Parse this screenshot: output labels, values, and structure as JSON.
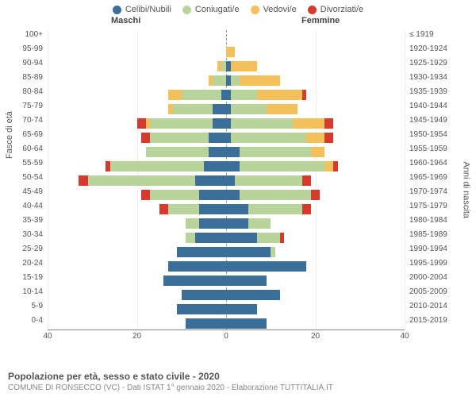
{
  "chart": {
    "type": "population-pyramid",
    "legend": [
      {
        "label": "Celibi/Nubili",
        "color": "#3b6e98"
      },
      {
        "label": "Coniugati/e",
        "color": "#b9d49a"
      },
      {
        "label": "Vedovi/e",
        "color": "#f4c05b"
      },
      {
        "label": "Divorziati/e",
        "color": "#d63a2c"
      }
    ],
    "header_male": "Maschi",
    "header_female": "Femmine",
    "yaxis_left_title": "Fasce di età",
    "yaxis_right_title": "Anni di nascita",
    "xmax": 40,
    "xticks_left": [
      40,
      20,
      0
    ],
    "xticks_right": [
      20,
      40
    ],
    "series_order": [
      "celibi",
      "coniugati",
      "vedovi",
      "divorziati"
    ],
    "colors": {
      "celibi": "#3b6e98",
      "coniugati": "#b9d49a",
      "vedovi": "#f4c05b",
      "divorziati": "#d63a2c"
    },
    "background_color": "#ffffff",
    "grid_color": "#eeeeee",
    "rows": [
      {
        "age": "100+",
        "birth": "≤ 1919",
        "m": {
          "celibi": 0,
          "coniugati": 0,
          "vedovi": 0,
          "divorziati": 0
        },
        "f": {
          "celibi": 0,
          "coniugati": 0,
          "vedovi": 0,
          "divorziati": 0
        }
      },
      {
        "age": "95-99",
        "birth": "1920-1924",
        "m": {
          "celibi": 0,
          "coniugati": 0,
          "vedovi": 0,
          "divorziati": 0
        },
        "f": {
          "celibi": 0,
          "coniugati": 0,
          "vedovi": 2,
          "divorziati": 0
        }
      },
      {
        "age": "90-94",
        "birth": "1925-1929",
        "m": {
          "celibi": 0,
          "coniugati": 1,
          "vedovi": 1,
          "divorziati": 0
        },
        "f": {
          "celibi": 1,
          "coniugati": 0,
          "vedovi": 6,
          "divorziati": 0
        }
      },
      {
        "age": "85-89",
        "birth": "1930-1934",
        "m": {
          "celibi": 0,
          "coniugati": 3,
          "vedovi": 1,
          "divorziati": 0
        },
        "f": {
          "celibi": 1,
          "coniugati": 2,
          "vedovi": 9,
          "divorziati": 0
        }
      },
      {
        "age": "80-84",
        "birth": "1935-1939",
        "m": {
          "celibi": 1,
          "coniugati": 9,
          "vedovi": 3,
          "divorziati": 0
        },
        "f": {
          "celibi": 1,
          "coniugati": 6,
          "vedovi": 10,
          "divorziati": 1
        }
      },
      {
        "age": "75-79",
        "birth": "1940-1944",
        "m": {
          "celibi": 3,
          "coniugati": 9,
          "vedovi": 1,
          "divorziati": 0
        },
        "f": {
          "celibi": 1,
          "coniugati": 8,
          "vedovi": 7,
          "divorziati": 0
        }
      },
      {
        "age": "70-74",
        "birth": "1945-1949",
        "m": {
          "celibi": 3,
          "coniugati": 14,
          "vedovi": 1,
          "divorziati": 2
        },
        "f": {
          "celibi": 1,
          "coniugati": 14,
          "vedovi": 7,
          "divorziati": 2
        }
      },
      {
        "age": "65-69",
        "birth": "1950-1954",
        "m": {
          "celibi": 4,
          "coniugati": 13,
          "vedovi": 0,
          "divorziati": 2
        },
        "f": {
          "celibi": 1,
          "coniugati": 17,
          "vedovi": 4,
          "divorziati": 2
        }
      },
      {
        "age": "60-64",
        "birth": "1955-1959",
        "m": {
          "celibi": 4,
          "coniugati": 14,
          "vedovi": 0,
          "divorziati": 0
        },
        "f": {
          "celibi": 3,
          "coniugati": 16,
          "vedovi": 3,
          "divorziati": 0
        }
      },
      {
        "age": "55-59",
        "birth": "1960-1964",
        "m": {
          "celibi": 5,
          "coniugati": 21,
          "vedovi": 0,
          "divorziati": 1
        },
        "f": {
          "celibi": 3,
          "coniugati": 19,
          "vedovi": 2,
          "divorziati": 1
        }
      },
      {
        "age": "50-54",
        "birth": "1965-1969",
        "m": {
          "celibi": 7,
          "coniugati": 24,
          "vedovi": 0,
          "divorziati": 2
        },
        "f": {
          "celibi": 2,
          "coniugati": 15,
          "vedovi": 0,
          "divorziati": 2
        }
      },
      {
        "age": "45-49",
        "birth": "1970-1974",
        "m": {
          "celibi": 6,
          "coniugati": 11,
          "vedovi": 0,
          "divorziati": 2
        },
        "f": {
          "celibi": 3,
          "coniugati": 16,
          "vedovi": 0,
          "divorziati": 2
        }
      },
      {
        "age": "40-44",
        "birth": "1975-1979",
        "m": {
          "celibi": 6,
          "coniugati": 7,
          "vedovi": 0,
          "divorziati": 2
        },
        "f": {
          "celibi": 5,
          "coniugati": 12,
          "vedovi": 0,
          "divorziati": 2
        }
      },
      {
        "age": "35-39",
        "birth": "1980-1984",
        "m": {
          "celibi": 6,
          "coniugati": 3,
          "vedovi": 0,
          "divorziati": 0
        },
        "f": {
          "celibi": 5,
          "coniugati": 5,
          "vedovi": 0,
          "divorziati": 0
        }
      },
      {
        "age": "30-34",
        "birth": "1985-1989",
        "m": {
          "celibi": 7,
          "coniugati": 2,
          "vedovi": 0,
          "divorziati": 0
        },
        "f": {
          "celibi": 7,
          "coniugati": 5,
          "vedovi": 0,
          "divorziati": 1
        }
      },
      {
        "age": "25-29",
        "birth": "1990-1994",
        "m": {
          "celibi": 11,
          "coniugati": 0,
          "vedovi": 0,
          "divorziati": 0
        },
        "f": {
          "celibi": 10,
          "coniugati": 1,
          "vedovi": 0,
          "divorziati": 0
        }
      },
      {
        "age": "20-24",
        "birth": "1995-1999",
        "m": {
          "celibi": 13,
          "coniugati": 0,
          "vedovi": 0,
          "divorziati": 0
        },
        "f": {
          "celibi": 18,
          "coniugati": 0,
          "vedovi": 0,
          "divorziati": 0
        }
      },
      {
        "age": "15-19",
        "birth": "2000-2004",
        "m": {
          "celibi": 14,
          "coniugati": 0,
          "vedovi": 0,
          "divorziati": 0
        },
        "f": {
          "celibi": 9,
          "coniugati": 0,
          "vedovi": 0,
          "divorziati": 0
        }
      },
      {
        "age": "10-14",
        "birth": "2005-2009",
        "m": {
          "celibi": 10,
          "coniugati": 0,
          "vedovi": 0,
          "divorziati": 0
        },
        "f": {
          "celibi": 12,
          "coniugati": 0,
          "vedovi": 0,
          "divorziati": 0
        }
      },
      {
        "age": "5-9",
        "birth": "2010-2014",
        "m": {
          "celibi": 11,
          "coniugati": 0,
          "vedovi": 0,
          "divorziati": 0
        },
        "f": {
          "celibi": 7,
          "coniugati": 0,
          "vedovi": 0,
          "divorziati": 0
        }
      },
      {
        "age": "0-4",
        "birth": "2015-2019",
        "m": {
          "celibi": 9,
          "coniugati": 0,
          "vedovi": 0,
          "divorziati": 0
        },
        "f": {
          "celibi": 9,
          "coniugati": 0,
          "vedovi": 0,
          "divorziati": 0
        }
      }
    ],
    "title": "Popolazione per età, sesso e stato civile - 2020",
    "subtitle": "COMUNE DI RONSECCO (VC) - Dati ISTAT 1° gennaio 2020 - Elaborazione TUTTITALIA.IT"
  }
}
